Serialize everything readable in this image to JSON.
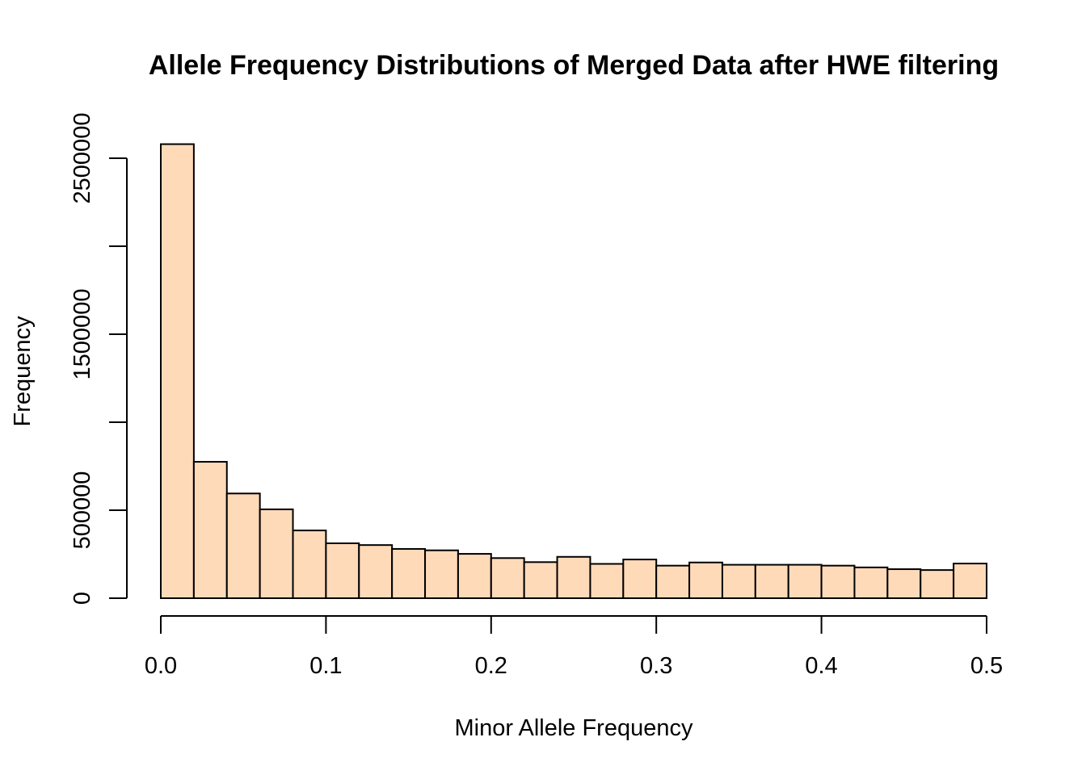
{
  "chart_data": {
    "type": "bar",
    "title": "Allele Frequency Distributions of Merged Data after HWE filtering",
    "xlabel": "Minor Allele Frequency",
    "ylabel": "Frequency",
    "xlim": [
      0,
      0.5
    ],
    "ylim": [
      0,
      2500000
    ],
    "x_ticks": [
      0.0,
      0.1,
      0.2,
      0.3,
      0.4,
      0.5
    ],
    "x_tick_labels": [
      "0.0",
      "0.1",
      "0.2",
      "0.3",
      "0.4",
      "0.5"
    ],
    "y_ticks": [
      0,
      500000,
      1000000,
      1500000,
      2000000,
      2500000
    ],
    "y_tick_labels": [
      "0",
      "500000",
      "",
      "1500000",
      "",
      "2500000"
    ],
    "bin_width": 0.02,
    "bins_start": [
      0.0,
      0.02,
      0.04,
      0.06,
      0.08,
      0.1,
      0.12,
      0.14,
      0.16,
      0.18,
      0.2,
      0.22,
      0.24,
      0.26,
      0.28,
      0.3,
      0.32,
      0.34,
      0.36,
      0.38,
      0.4,
      0.42,
      0.44,
      0.46,
      0.48
    ],
    "values": [
      2580000,
      775000,
      595000,
      505000,
      385000,
      312000,
      302000,
      280000,
      272000,
      252000,
      228000,
      205000,
      235000,
      195000,
      220000,
      185000,
      203000,
      190000,
      190000,
      190000,
      185000,
      175000,
      165000,
      160000,
      197000
    ],
    "bar_color": "#FFDAB9",
    "grid": false,
    "legend": "none"
  }
}
